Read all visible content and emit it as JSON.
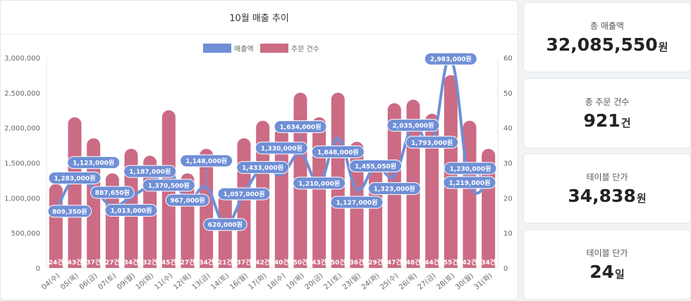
{
  "chart_title": "10월 매출 추이",
  "stats": [
    {
      "label": "총 매출액",
      "value": "32,085,550",
      "unit": "원"
    },
    {
      "label": "총 주문 건수",
      "value": "921",
      "unit": "건"
    },
    {
      "label": "테이블 단가",
      "value": "34,838",
      "unit": "원"
    },
    {
      "label": "테이블 단가",
      "value": "24",
      "unit": "일"
    }
  ],
  "colors": {
    "revenue": "#6f8fd6",
    "orders": "#cc6b84"
  },
  "chart_data": {
    "type": "bar",
    "title": "10월 매출 추이",
    "legend": [
      "매출액",
      "주문 건수"
    ],
    "legend_position": "top",
    "categories": [
      "04(수)",
      "05(목)",
      "06(금)",
      "07(토)",
      "09(월)",
      "10(화)",
      "11(수)",
      "12(목)",
      "13(금)",
      "14(토)",
      "16(월)",
      "17(화)",
      "18(수)",
      "19(목)",
      "20(금)",
      "21(토)",
      "23(월)",
      "24(화)",
      "25(수)",
      "26(목)",
      "27(금)",
      "28(토)",
      "30(월)",
      "31(화)"
    ],
    "series": [
      {
        "name": "매출액",
        "type": "line",
        "axis": "left",
        "unit": "원",
        "values": [
          809350,
          1283000,
          1123000,
          887650,
          1013000,
          1187000,
          1370500,
          967000,
          1148000,
          620000,
          1057000,
          1433000,
          1330000,
          1634000,
          1210000,
          1848000,
          1127000,
          1455050,
          1323000,
          2035000,
          1793000,
          2983000,
          1219000,
          1230000
        ]
      },
      {
        "name": "주문 건수",
        "type": "bar",
        "axis": "right",
        "unit": "건",
        "values": [
          24,
          43,
          37,
          27,
          34,
          32,
          45,
          27,
          34,
          21,
          37,
          42,
          40,
          50,
          43,
          50,
          36,
          29,
          47,
          48,
          44,
          55,
          42,
          34
        ]
      }
    ],
    "y_left": {
      "min": 0,
      "max": 3000000,
      "ticks": [
        "0",
        "500,000",
        "1,000,000",
        "1,500,000",
        "2,000,000",
        "2,500,000",
        "3,000,000"
      ]
    },
    "y_right": {
      "min": 0,
      "max": 60,
      "ticks": [
        "0",
        "10",
        "20",
        "30",
        "40",
        "50",
        "60"
      ]
    }
  }
}
